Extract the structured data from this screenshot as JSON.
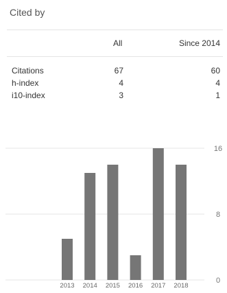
{
  "header": {
    "title": "Cited by"
  },
  "table": {
    "columns": {
      "all": "All",
      "since": "Since 2014"
    },
    "rows": [
      {
        "label": "Citations",
        "all": "67",
        "since": "60"
      },
      {
        "label": "h-index",
        "all": "4",
        "since": "4"
      },
      {
        "label": "i10-index",
        "all": "3",
        "since": "1"
      }
    ]
  },
  "colors": {
    "bar": "#767676",
    "grid": "#e6e6e6"
  },
  "chart_data": {
    "type": "bar",
    "categories": [
      "2013",
      "2014",
      "2015",
      "2016",
      "2017",
      "2018"
    ],
    "values": [
      5,
      13,
      14,
      3,
      16,
      14
    ],
    "yticks": [
      "16",
      "8",
      "0"
    ],
    "ylim": [
      0,
      16
    ],
    "title": "",
    "xlabel": "",
    "ylabel": "",
    "grid": true
  }
}
